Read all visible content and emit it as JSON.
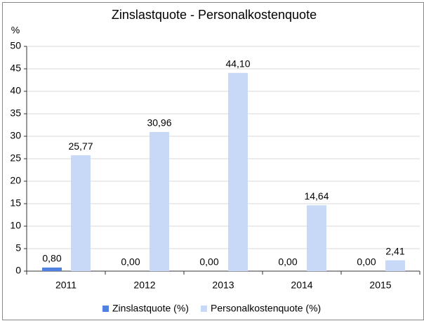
{
  "chart_data": {
    "type": "bar",
    "title": "Zinslastquote - Personalkostenquote",
    "y_label": "%",
    "categories": [
      "2011",
      "2012",
      "2013",
      "2014",
      "2015"
    ],
    "series": [
      {
        "name": "Zinslastquote (%)",
        "color": "#4f81e0",
        "values": [
          0.8,
          0,
          0,
          0,
          0
        ],
        "value_labels": [
          "0,80",
          "0,00",
          "0,00",
          "0,00",
          "0,00"
        ]
      },
      {
        "name": "Personalkostenquote (%)",
        "color": "#c8d9f7",
        "values": [
          25.77,
          30.96,
          44.1,
          14.64,
          2.41
        ],
        "value_labels": [
          "25,77",
          "30,96",
          "44,10",
          "14,64",
          "2,41"
        ]
      }
    ],
    "ylim": [
      0,
      50
    ],
    "yticks": [
      0,
      5,
      10,
      15,
      20,
      25,
      30,
      35,
      40,
      45,
      50
    ],
    "grid": true,
    "legend": "bottom"
  }
}
